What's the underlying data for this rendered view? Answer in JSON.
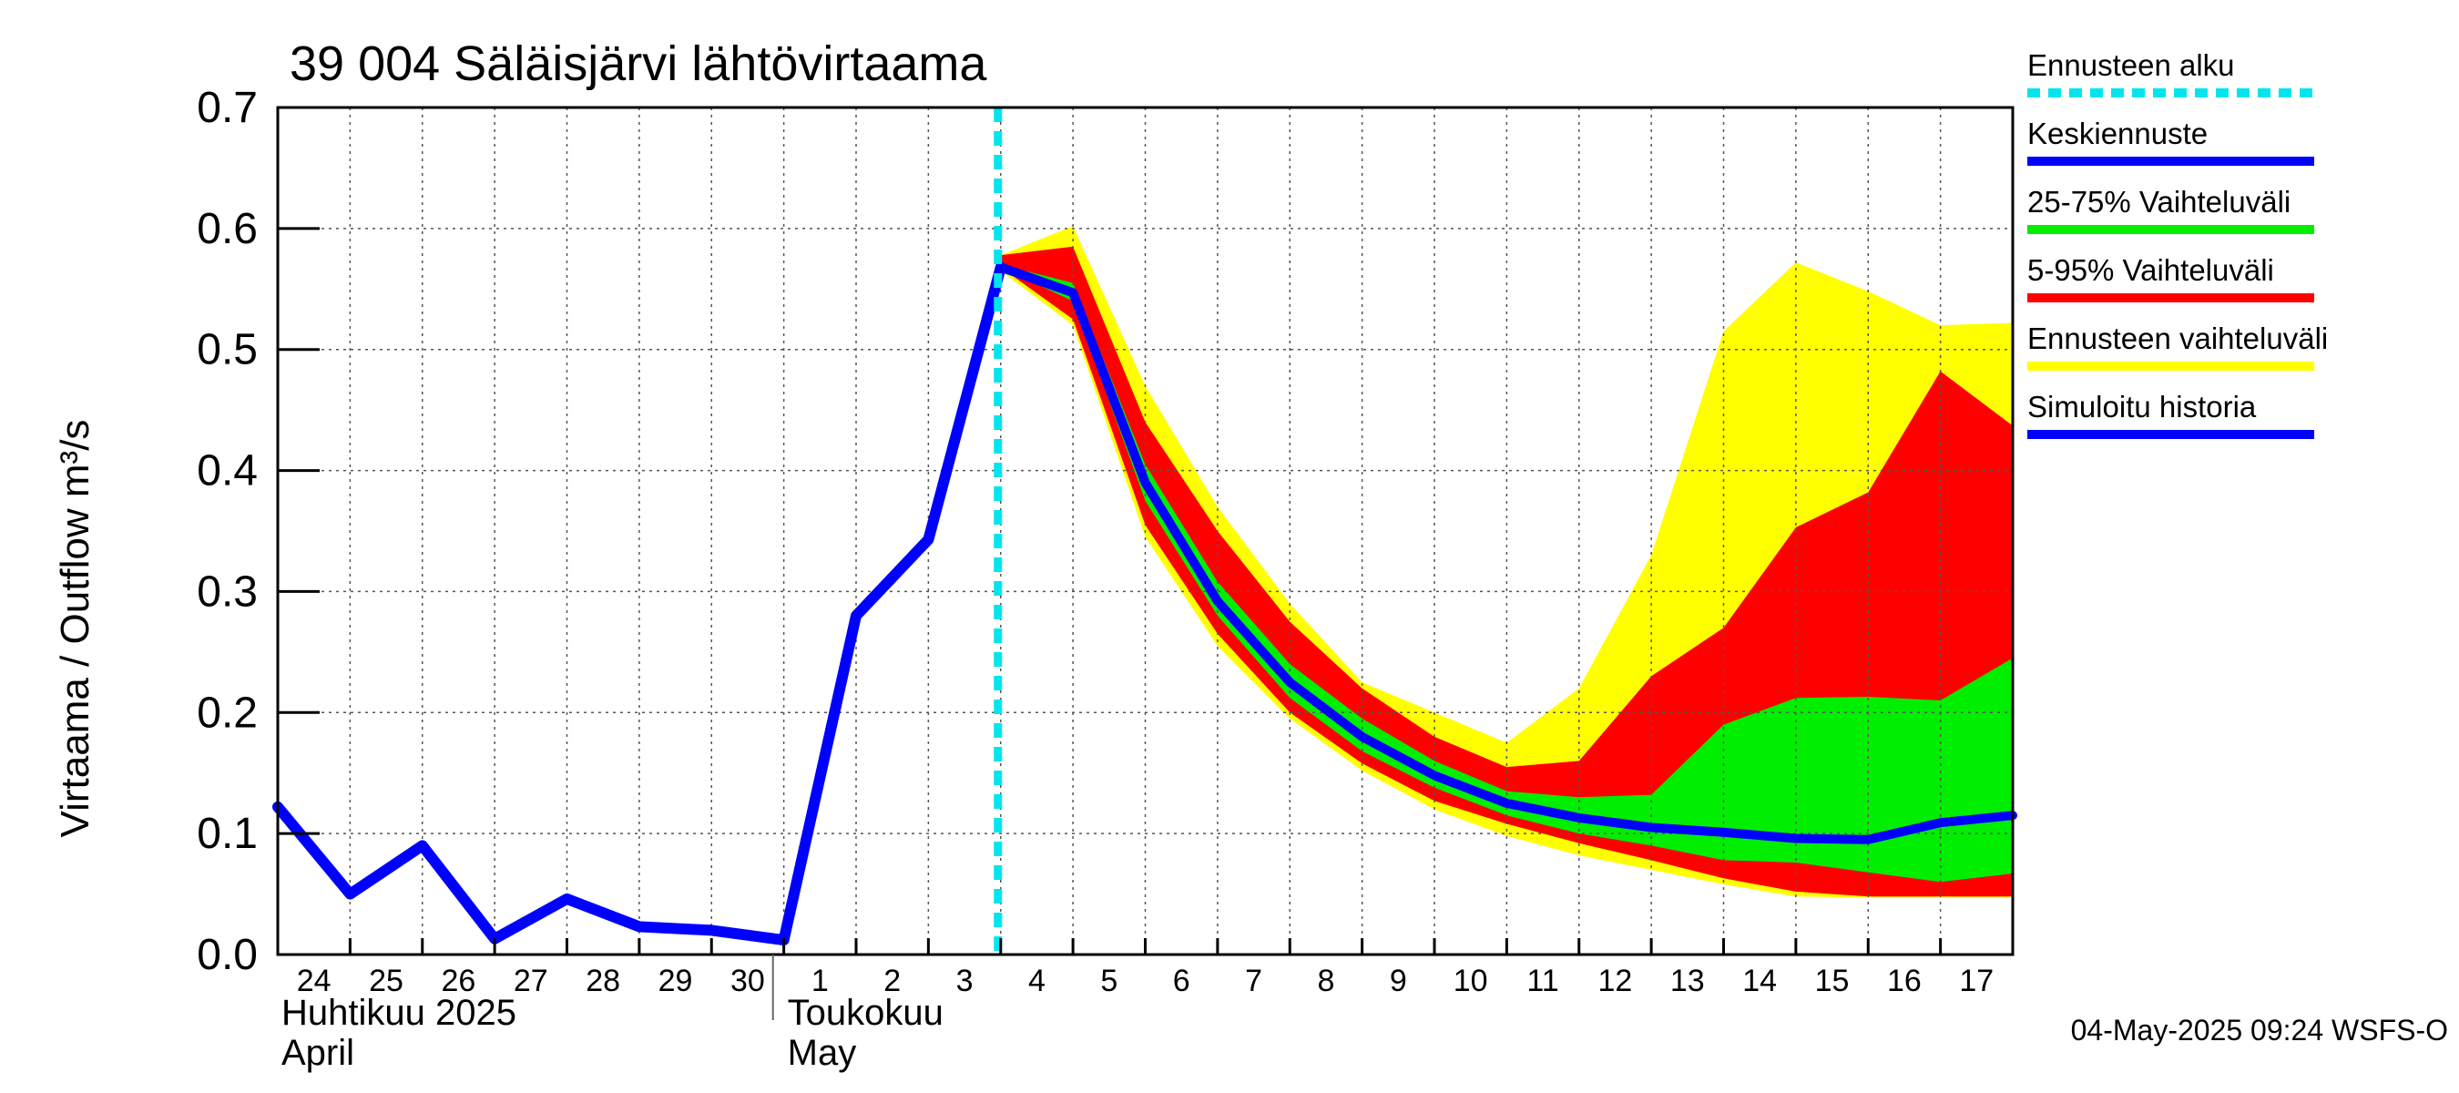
{
  "chart_data": {
    "type": "area",
    "title": "39 004 Säläisjärvi lähtövirtaama",
    "ylabel": "Virtaama / Outflow    m³/s",
    "ylim": [
      0.0,
      0.7
    ],
    "yticks": [
      "0.0",
      "0.1",
      "0.2",
      "0.3",
      "0.4",
      "0.5",
      "0.6",
      "0.7"
    ],
    "grid": true,
    "legend_placement": "right",
    "xlim_days": [
      "2025-04-24",
      "2025-05-18"
    ],
    "x_tick_labels": [
      "24",
      "25",
      "26",
      "27",
      "28",
      "29",
      "30",
      "1",
      "2",
      "3",
      "4",
      "5",
      "6",
      "7",
      "8",
      "9",
      "10",
      "11",
      "12",
      "13",
      "14",
      "15",
      "16",
      "17"
    ],
    "months": [
      {
        "fi": "Huhtikuu  2025",
        "en": "April",
        "start": "2025-04-24"
      },
      {
        "fi": "Toukokuu",
        "en": "May",
        "start": "2025-05-01"
      }
    ],
    "forecast_start": "2025-05-04",
    "dates_hist": [
      "2025-04-24",
      "2025-04-25",
      "2025-04-26",
      "2025-04-27",
      "2025-04-28",
      "2025-04-29",
      "2025-04-30",
      "2025-05-01",
      "2025-05-02",
      "2025-05-03",
      "2025-05-04"
    ],
    "simulated_history": [
      0.122,
      0.05,
      0.09,
      0.013,
      0.046,
      0.023,
      0.02,
      0.012,
      0.28,
      0.343,
      0.568
    ],
    "dates_fc": [
      "2025-05-04",
      "2025-05-05",
      "2025-05-06",
      "2025-05-07",
      "2025-05-08",
      "2025-05-09",
      "2025-05-10",
      "2025-05-11",
      "2025-05-12",
      "2025-05-13",
      "2025-05-14",
      "2025-05-15",
      "2025-05-16",
      "2025-05-17",
      "2025-05-18"
    ],
    "series": [
      {
        "name": "Ennusteen vaihteluväli",
        "color": "#ffff00",
        "low": [
          0.565,
          0.52,
          0.345,
          0.255,
          0.195,
          0.152,
          0.12,
          0.098,
          0.082,
          0.07,
          0.058,
          0.048,
          0.047,
          0.047,
          0.047
        ],
        "high": [
          0.578,
          0.602,
          0.47,
          0.37,
          0.29,
          0.225,
          0.2,
          0.175,
          0.22,
          0.33,
          0.515,
          0.572,
          0.548,
          0.52,
          0.522
        ]
      },
      {
        "name": "5-95% Vaihteluväli",
        "color": "#ff0000",
        "low": [
          0.568,
          0.525,
          0.355,
          0.265,
          0.2,
          0.158,
          0.127,
          0.108,
          0.092,
          0.078,
          0.063,
          0.052,
          0.048,
          0.048,
          0.048
        ],
        "high": [
          0.578,
          0.585,
          0.44,
          0.35,
          0.275,
          0.22,
          0.18,
          0.155,
          0.16,
          0.23,
          0.27,
          0.353,
          0.382,
          0.482,
          0.437
        ]
      },
      {
        "name": "25-75% Vaihteluväli",
        "color": "#00ee00",
        "low": [
          0.568,
          0.54,
          0.375,
          0.28,
          0.212,
          0.168,
          0.138,
          0.115,
          0.1,
          0.09,
          0.078,
          0.076,
          0.068,
          0.06,
          0.067
        ],
        "high": [
          0.57,
          0.555,
          0.405,
          0.308,
          0.24,
          0.195,
          0.16,
          0.135,
          0.13,
          0.132,
          0.19,
          0.212,
          0.213,
          0.21,
          0.245
        ]
      },
      {
        "name": "Keskiennuste",
        "color": "#0000ff",
        "values": [
          0.568,
          0.547,
          0.39,
          0.292,
          0.225,
          0.18,
          0.148,
          0.125,
          0.113,
          0.105,
          0.101,
          0.096,
          0.095,
          0.109,
          0.115
        ]
      }
    ]
  },
  "legend": {
    "items": [
      {
        "label": "Ennusteen alku",
        "color": "#00e5ee",
        "style": "dashed"
      },
      {
        "label": "Keskiennuste",
        "color": "#0000ff",
        "style": "solid"
      },
      {
        "label": "25-75% Vaihteluväli",
        "color": "#00ee00",
        "style": "solid"
      },
      {
        "label": "5-95% Vaihteluväli",
        "color": "#ff0000",
        "style": "solid"
      },
      {
        "label": "Ennusteen vaihteluväli",
        "color": "#ffff00",
        "style": "solid"
      },
      {
        "label": "Simuloitu historia",
        "color": "#0000ff",
        "style": "solid"
      }
    ]
  },
  "timestamp": "04-May-2025 09:24 WSFS-O"
}
